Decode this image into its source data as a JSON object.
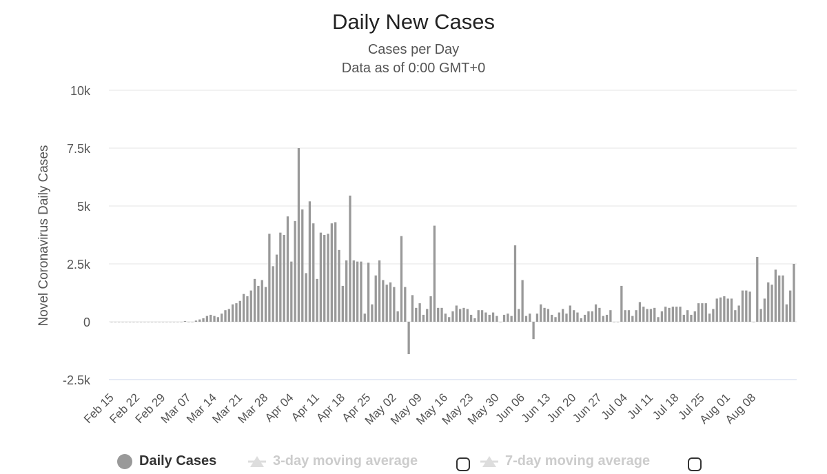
{
  "chart_data": {
    "type": "bar",
    "title": "Daily New Cases",
    "subtitle_line1": "Cases per Day",
    "subtitle_line2": "Data as of 0:00 GMT+0",
    "ylabel": "Novel Coronavirus Daily Cases",
    "xlabel": "",
    "ylim": [
      -2500,
      10000
    ],
    "y_ticks": [
      {
        "value": 10000,
        "label": "10k"
      },
      {
        "value": 7500,
        "label": "7.5k"
      },
      {
        "value": 5000,
        "label": "5k"
      },
      {
        "value": 2500,
        "label": "2.5k"
      },
      {
        "value": 0,
        "label": "0"
      },
      {
        "value": -2500,
        "label": "-2.5k"
      }
    ],
    "start_date": "Feb 15",
    "x_tick_labels": [
      "Feb 15",
      "Feb 22",
      "Feb 29",
      "Mar 07",
      "Mar 14",
      "Mar 21",
      "Mar 28",
      "Apr 04",
      "Apr 11",
      "Apr 18",
      "Apr 25",
      "May 02",
      "May 09",
      "May 16",
      "May 23",
      "May 30",
      "Jun 06",
      "Jun 13",
      "Jun 20",
      "Jun 27",
      "Jul 04",
      "Jul 11",
      "Jul 18",
      "Jul 25",
      "Aug 01",
      "Aug 08"
    ],
    "series": [
      {
        "name": "Daily Cases",
        "color": "#999999",
        "values": [
          0,
          0,
          0,
          0,
          0,
          0,
          0,
          0,
          0,
          0,
          0,
          0,
          0,
          0,
          0,
          0,
          0,
          0,
          0,
          0,
          30,
          0,
          0,
          50,
          100,
          150,
          250,
          300,
          250,
          200,
          350,
          500,
          550,
          750,
          800,
          900,
          1200,
          1100,
          1350,
          1850,
          1550,
          1800,
          1500,
          3800,
          2400,
          2900,
          3850,
          3750,
          4550,
          2600,
          4350,
          7500,
          4850,
          2100,
          5200,
          4250,
          1850,
          3850,
          3750,
          3800,
          4250,
          4300,
          3100,
          1550,
          2650,
          5450,
          2650,
          2600,
          2600,
          350,
          2550,
          750,
          2000,
          2650,
          1800,
          1600,
          1700,
          1500,
          450,
          3700,
          1500,
          -1400,
          1150,
          600,
          800,
          300,
          550,
          1100,
          4150,
          600,
          600,
          350,
          200,
          450,
          700,
          550,
          600,
          550,
          300,
          150,
          500,
          500,
          400,
          300,
          400,
          250,
          0,
          300,
          350,
          250,
          3300,
          550,
          1800,
          250,
          350,
          -750,
          350,
          750,
          600,
          550,
          300,
          200,
          400,
          550,
          350,
          700,
          500,
          400,
          150,
          300,
          450,
          450,
          750,
          600,
          250,
          300,
          500,
          0,
          0,
          1550,
          500,
          500,
          250,
          500,
          850,
          650,
          550,
          550,
          600,
          200,
          450,
          650,
          600,
          650,
          650,
          650,
          300,
          500,
          300,
          450,
          800,
          800,
          800,
          350,
          550,
          1000,
          1050,
          1100,
          1000,
          1000,
          500,
          700,
          1350,
          1350,
          1300,
          0,
          2800,
          550,
          1000,
          1700,
          1600,
          2250,
          2000,
          2000,
          750,
          1350,
          2500
        ]
      }
    ],
    "legend": [
      {
        "label": "Daily Cases",
        "color": "#999999"
      },
      {
        "label": "3-day moving average",
        "color": "#dddddd"
      },
      {
        "label": "7-day moving average",
        "color": "#dddddd"
      }
    ]
  }
}
